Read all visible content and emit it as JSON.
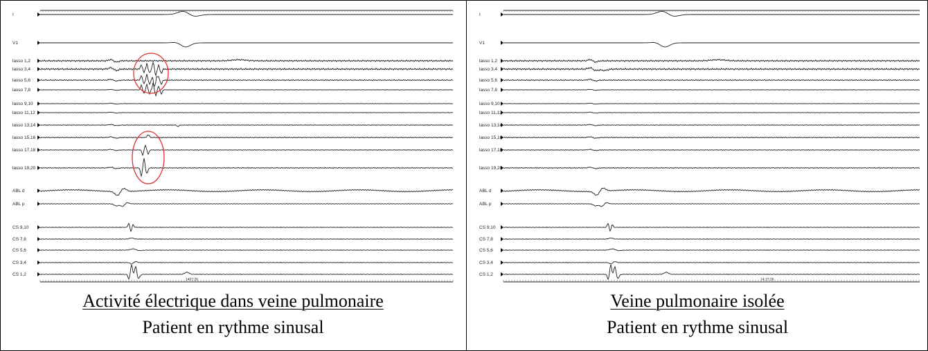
{
  "panels": [
    {
      "title": "Activité électrique dans veine pulmonaire",
      "subtitle": "Patient en rythme sinusal",
      "time_label": "1407:26",
      "highlighted_activity": true
    },
    {
      "title": "Veine pulmonaire isolée",
      "subtitle": "Patient en rythme sinusal",
      "time_label": "14:37:26",
      "highlighted_activity": false
    }
  ],
  "channels": [
    "I",
    "V1",
    "lasso 1,2",
    "lasso 3,4",
    "lasso 5,6",
    "lasso 7,8",
    "lasso 9,10",
    "lasso 11,12",
    "lasso 13,14",
    "lasso 15,16",
    "lasso 17,18",
    "lasso 19,20",
    "ABL d",
    "ABL p",
    "CS 9,10",
    "CS 7,8",
    "CS 5,6",
    "CS 3,4",
    "CS 1,2"
  ],
  "colors": {
    "trace": "#1a1a1a",
    "highlight_circle": "#e03030"
  }
}
